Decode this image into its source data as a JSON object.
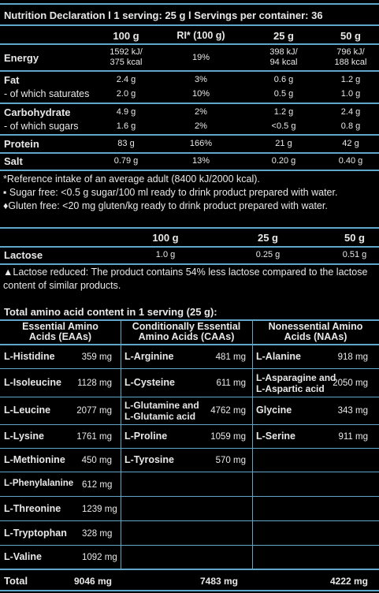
{
  "title": "Nutrition Declaration l 1 serving: 25 g l Servings per container: 36",
  "nutrition": {
    "headers": [
      "100 g",
      "RI* (100 g)",
      "25 g",
      "50 g"
    ],
    "rows": [
      {
        "name": "Energy",
        "bold": true,
        "v100_l1": "1592 kJ/",
        "v100_l2": "375 kcal",
        "ri": "19%",
        "v25_l1": "398 kJ/",
        "v25_l2": "94 kcal",
        "v50_l1": "796 kJ/",
        "v50_l2": "188 kcal"
      },
      {
        "name": "Fat",
        "bold": true,
        "v100": "2.4 g",
        "ri": "3%",
        "v25": "0.6 g",
        "v50": "1.2 g"
      },
      {
        "name": "- of which saturates",
        "bold": false,
        "v100": "2.0 g",
        "ri": "10%",
        "v25": "0.5 g",
        "v50": "1.0 g"
      },
      {
        "name": "Carbohydrate",
        "bold": true,
        "v100": "4.9 g",
        "ri": "2%",
        "v25": "1.2 g",
        "v50": "2.4 g"
      },
      {
        "name": "- of which sugars",
        "bold": false,
        "v100": "1.6 g",
        "ri": "2%",
        "v25": "<0.5 g",
        "v50": "0.8 g"
      },
      {
        "name": "Protein",
        "bold": true,
        "v100": "83 g",
        "ri": "166%",
        "v25": "21 g",
        "v50": "42 g"
      },
      {
        "name": "Salt",
        "bold": true,
        "v100": "0.79 g",
        "ri": "13%",
        "v25": "0.20 g",
        "v50": "0.40 g"
      }
    ]
  },
  "footnotes": [
    "*Reference intake of an average adult (8400 kJ/2000 kcal).",
    "▪ Sugar free: <0.5 g sugar/100 ml ready to drink product prepared with water.",
    "♦Gluten free: <20 mg gluten/kg ready to drink product prepared with water."
  ],
  "lactose": {
    "headers": [
      "100 g",
      "25 g",
      "50 g"
    ],
    "name": "Lactose",
    "v100": "1.0 g",
    "v25": "0.25 g",
    "v50": "0.51 g",
    "note_l1": "▲Lactose reduced: The product contains 54% less lactose compared to the lactose",
    "note_l2": "content of similar products."
  },
  "amino": {
    "title": "Total amino acid content in 1 serving (25 g):",
    "col_headers": [
      {
        "l1": "Essential Amino",
        "l2": "Acids (EAAs)"
      },
      {
        "l1": "Conditionally Essential",
        "l2": "Amino Acids (CAAs)"
      },
      {
        "l1": "Nonessential Amino",
        "l2": "Acids (NAAs)"
      }
    ],
    "eaa": [
      {
        "name": "L-Histidine",
        "val": "359 mg"
      },
      {
        "name": "L-Isoleucine",
        "val": "1128 mg"
      },
      {
        "name": "L-Leucine",
        "val": "2077 mg"
      },
      {
        "name": "L-Lysine",
        "val": "1761 mg"
      },
      {
        "name": "L-Methionine",
        "val": "450 mg"
      },
      {
        "name": "L-Phenylalanine",
        "val": "612 mg"
      },
      {
        "name": "L-Threonine",
        "val": "1239 mg"
      },
      {
        "name": "L-Tryptophan",
        "val": "328 mg"
      },
      {
        "name": "L-Valine",
        "val": "1092 mg"
      }
    ],
    "caa": [
      {
        "name": "L-Arginine",
        "val": "481 mg"
      },
      {
        "name": "L-Cysteine",
        "val": "611 mg"
      },
      {
        "name_l1": "L-Glutamine and",
        "name_l2": "L-Glutamic acid",
        "val": "4762 mg"
      },
      {
        "name": "L-Proline",
        "val": "1059 mg"
      },
      {
        "name": "L-Tyrosine",
        "val": "570 mg"
      }
    ],
    "naa": [
      {
        "name": "L-Alanine",
        "val": "918 mg"
      },
      {
        "name_l1": "L-Asparagine and",
        "name_l2": "L-Aspartic acid",
        "val": "2050 mg"
      },
      {
        "name": "Glycine",
        "val": "343 mg"
      },
      {
        "name": "L-Serine",
        "val": "911 mg"
      }
    ],
    "total_label": "Total",
    "totals": [
      "9046 mg",
      "7483 mg",
      "4222 mg"
    ]
  },
  "colors": {
    "background": "#000000",
    "rule": "#5fa6c8",
    "text": "#e8e8e8"
  }
}
